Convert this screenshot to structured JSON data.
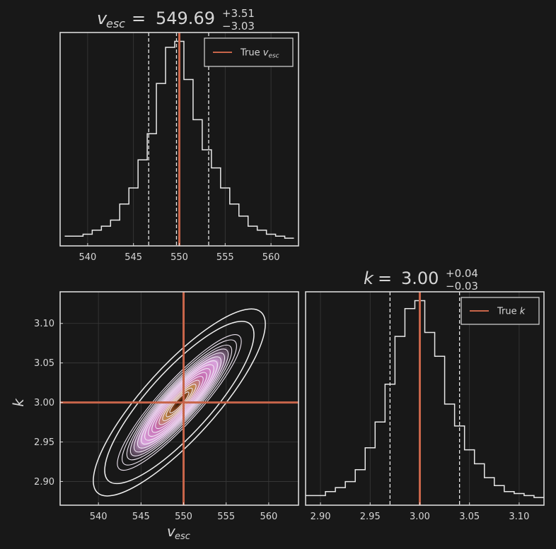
{
  "colors": {
    "background": "#181818",
    "frame": "#d9d9d9",
    "histogram": "#e8e8e8",
    "truth": "#c8654a",
    "density_low": "#d9a3dd",
    "density_mid": "#c56ab0",
    "density_high": "#1e0f08"
  },
  "panels": {
    "vesc_hist": {
      "title_param": "v",
      "title_sub": "esc",
      "title_value": "549.69",
      "title_plus": "+3.51",
      "title_minus": "−3.03",
      "legend_label": "True ",
      "legend_param": "v",
      "legend_sub": "esc"
    },
    "k_hist": {
      "title_param": "k",
      "title_value": "3.00",
      "title_plus": "+0.04",
      "title_minus": "−0.03",
      "legend_label": "True ",
      "legend_param": "k"
    },
    "joint": {
      "xlabel_param": "v",
      "xlabel_sub": "esc",
      "ylabel": "k"
    }
  },
  "chart_data": [
    {
      "type": "bar",
      "panel": "vesc_hist",
      "style": "step histogram",
      "x": [
        538,
        539,
        540,
        541,
        542,
        543,
        544,
        545,
        546,
        547,
        548,
        549,
        550,
        551,
        552,
        553,
        554,
        555,
        556,
        557,
        558,
        559,
        560,
        561,
        562
      ],
      "values": [
        0.02,
        0.02,
        0.03,
        0.05,
        0.07,
        0.1,
        0.18,
        0.26,
        0.4,
        0.53,
        0.78,
        0.96,
        0.99,
        0.8,
        0.6,
        0.45,
        0.36,
        0.26,
        0.18,
        0.12,
        0.07,
        0.05,
        0.03,
        0.02,
        0.01
      ],
      "quantile_lines": [
        546.66,
        549.69,
        553.2
      ],
      "truth": 550,
      "xlim": [
        537,
        563
      ],
      "xticks": [
        "540",
        "545",
        "550",
        "555",
        "560"
      ],
      "grid": true,
      "legend": "top-right"
    },
    {
      "type": "bar",
      "panel": "k_hist",
      "style": "step histogram",
      "x": [
        2.89,
        2.9,
        2.91,
        2.92,
        2.93,
        2.94,
        2.95,
        2.96,
        2.97,
        2.98,
        2.99,
        3.0,
        3.01,
        3.02,
        3.03,
        3.04,
        3.05,
        3.06,
        3.07,
        3.08,
        3.09,
        3.1,
        3.11,
        3.12
      ],
      "values": [
        0.02,
        0.02,
        0.04,
        0.06,
        0.09,
        0.15,
        0.26,
        0.39,
        0.58,
        0.82,
        0.96,
        1.0,
        0.84,
        0.72,
        0.48,
        0.37,
        0.25,
        0.18,
        0.11,
        0.07,
        0.04,
        0.03,
        0.02,
        0.01
      ],
      "quantile_lines": [
        2.97,
        3.0,
        3.04
      ],
      "truth": 3.0,
      "xlim": [
        2.885,
        3.125
      ],
      "xticks": [
        "2.90",
        "2.95",
        "3.00",
        "3.05",
        "3.10"
      ],
      "grid": true,
      "legend": "top-right"
    },
    {
      "type": "heatmap",
      "panel": "joint",
      "style": "2D density contours",
      "center": [
        549.5,
        3.0
      ],
      "std": [
        2.8,
        0.033
      ],
      "correlation": 0.9,
      "truth": [
        550,
        3.0
      ],
      "xlim": [
        535.5,
        563.5
      ],
      "ylim": [
        2.87,
        3.14
      ],
      "xticks": [
        "540",
        "545",
        "550",
        "555",
        "560"
      ],
      "yticks": [
        "2.90",
        "2.95",
        "3.00",
        "3.05",
        "3.10"
      ],
      "grid": true
    }
  ]
}
